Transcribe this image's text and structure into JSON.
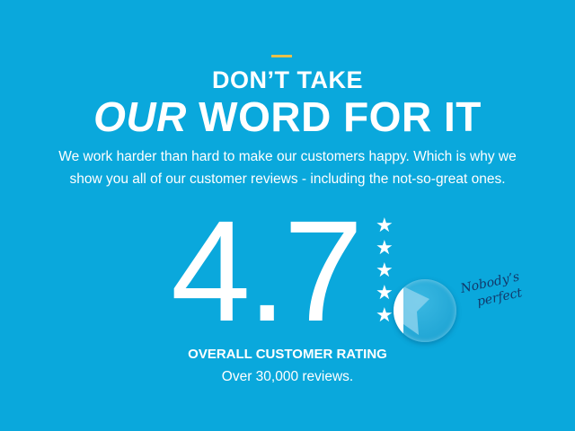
{
  "colors": {
    "background": "#0aa8dc",
    "accent": "#e8c04a",
    "handwriting": "#123a6b"
  },
  "heading": {
    "line1": "DON’T TAKE",
    "line2_italic": "OUR",
    "line2_rest": " WORD FOR IT"
  },
  "intro": {
    "line1": "We work harder than hard to make our customers happy. Which is why we",
    "line2": "show you all of our customer reviews - including the not-so-great ones."
  },
  "rating": {
    "value": "4.7",
    "max_stars": 5,
    "label": "OVERALL CUSTOMER RATING",
    "count_text": "Over 30,000 reviews."
  },
  "annotation": {
    "line1": "Nobody’s",
    "line2": "perfect"
  },
  "icons": {
    "star": "star-icon",
    "magnifier": "magnifier-icon"
  }
}
